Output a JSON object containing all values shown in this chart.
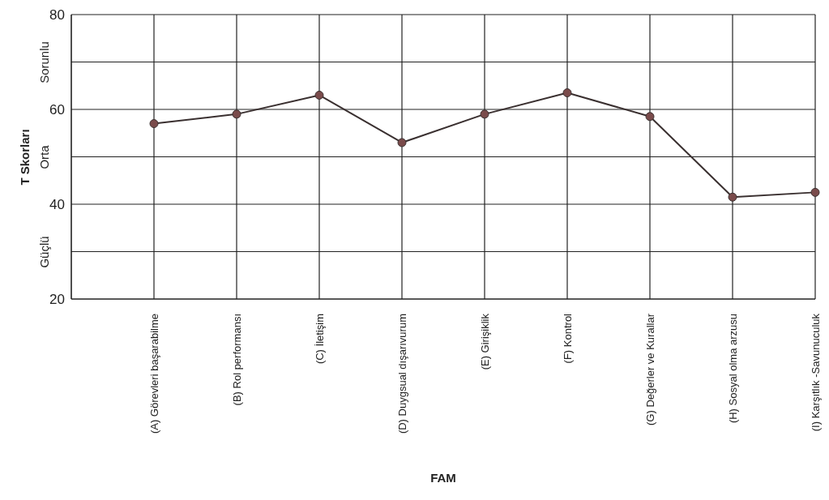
{
  "chart_data": {
    "type": "line",
    "ylabel": "T Skorları",
    "xlabel": "FAM",
    "categories": [
      "(A)  Görevleri başarabilme",
      "(B) Rol performansı",
      "(C) İletişim",
      "(D) Duygsual dışarıvurum",
      "(E) Girişiklik",
      "(F) Kontrol",
      "(G) Değerler ve Kurallar",
      "(H)  Sosyal olma arzusu",
      "(I) Karşıtlık -Savunuculuk"
    ],
    "series": [
      {
        "color": "#3a3030",
        "values": [
          57,
          59,
          63,
          53,
          59,
          63.5,
          58.5,
          41.5,
          42.5
        ]
      }
    ],
    "ylim": [
      20,
      80
    ],
    "yticks": [
      20,
      {
        "value": 30,
        "label": null
      },
      40,
      {
        "value": 50,
        "label": null
      },
      60,
      {
        "value": 70,
        "label": null
      },
      80
    ],
    "annotations": [
      "Sorunlu",
      "Orta",
      "Güçlü"
    ],
    "grid": true,
    "marker": "circle"
  }
}
